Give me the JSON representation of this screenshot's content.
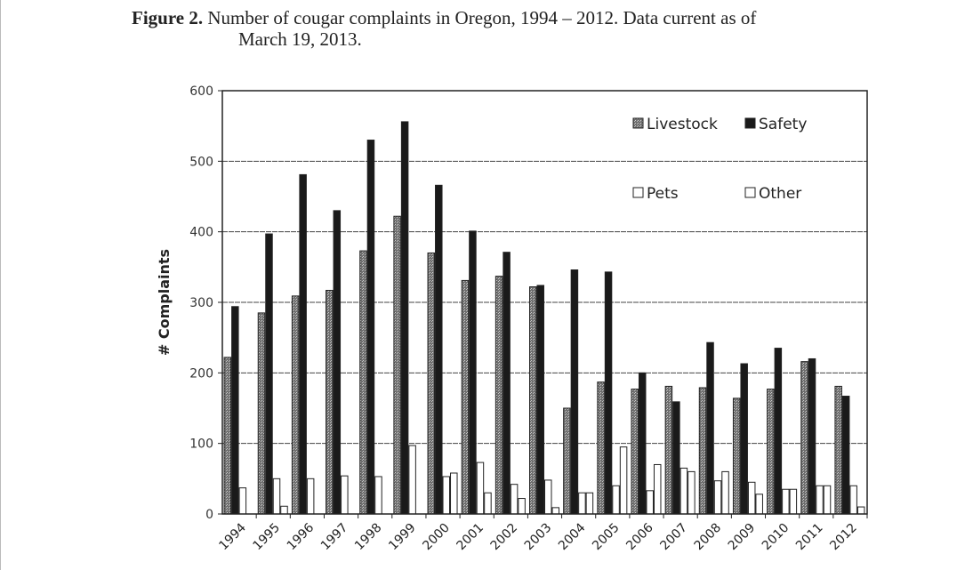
{
  "caption": {
    "label": "Figure 2.",
    "text_line1": "Number of cougar complaints in Oregon, 1994 – 2012.  Data current as of",
    "text_line2": "March 19, 2013."
  },
  "chart_data": {
    "type": "bar",
    "title": "",
    "xlabel": "",
    "ylabel": "# Complaints",
    "ylim": [
      0,
      600
    ],
    "yticks": [
      0,
      100,
      200,
      300,
      400,
      500,
      600
    ],
    "grid": true,
    "legend_position": "top-right",
    "categories": [
      "1994",
      "1995",
      "1996",
      "1997",
      "1998",
      "1999",
      "2000",
      "2001",
      "2002",
      "2003",
      "2004",
      "2005",
      "2006",
      "2007",
      "2008",
      "2009",
      "2010",
      "2011",
      "2012"
    ],
    "series": [
      {
        "name": "Livestock",
        "color": "#8a8a8a",
        "values": [
          222,
          285,
          309,
          317,
          373,
          422,
          370,
          331,
          337,
          322,
          150,
          187,
          177,
          181,
          179,
          164,
          177,
          216,
          181
        ]
      },
      {
        "name": "Safety",
        "color": "#1a1a1a",
        "values": [
          294,
          397,
          481,
          430,
          530,
          556,
          466,
          401,
          371,
          324,
          346,
          343,
          200,
          159,
          243,
          213,
          235,
          220,
          167
        ]
      },
      {
        "name": "Pets",
        "color": "#ffffff",
        "values": [
          37,
          50,
          50,
          54,
          53,
          97,
          53,
          73,
          42,
          48,
          30,
          40,
          33,
          65,
          47,
          45,
          35,
          40,
          40
        ]
      },
      {
        "name": "Other",
        "color": "#ffffff",
        "values": [
          0,
          11,
          0,
          0,
          0,
          0,
          58,
          30,
          22,
          9,
          30,
          95,
          70,
          60,
          60,
          28,
          35,
          40,
          10
        ]
      }
    ]
  }
}
